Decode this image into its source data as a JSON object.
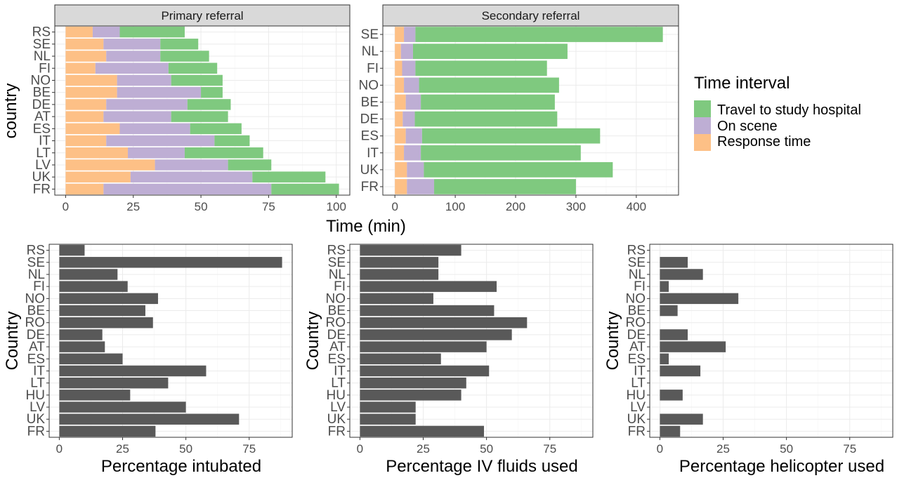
{
  "legend": {
    "title": "Time interval",
    "items": [
      {
        "label": "Travel to study hospital",
        "color": "#7fc97f"
      },
      {
        "label": "On scene",
        "color": "#beaed4"
      },
      {
        "label": "Response time",
        "color": "#fdc086"
      }
    ]
  },
  "top_xlabel": "Time (min)",
  "top_ylabel": "country",
  "chart_data": [
    {
      "type": "bar",
      "stacked": true,
      "orientation": "horizontal",
      "title": "Primary referral",
      "ylabel": "country",
      "xlabel": "Time (min)",
      "categories": [
        "RS",
        "SE",
        "NL",
        "FI",
        "NO",
        "BE",
        "DE",
        "AT",
        "ES",
        "IT",
        "LT",
        "LV",
        "UK",
        "FR"
      ],
      "series": [
        {
          "name": "Response time",
          "color": "#fdc086",
          "values": [
            10,
            14,
            15,
            11,
            19,
            19,
            15,
            14,
            20,
            15,
            23,
            33,
            24,
            14
          ]
        },
        {
          "name": "On scene",
          "color": "#beaed4",
          "values": [
            10,
            21,
            20,
            27,
            20,
            31,
            30,
            25,
            26,
            40,
            21,
            27,
            45,
            62
          ]
        },
        {
          "name": "Travel to study hospital",
          "color": "#7fc97f",
          "values": [
            24,
            14,
            18,
            18,
            19,
            8,
            16,
            21,
            19,
            13,
            29,
            16,
            27,
            25
          ]
        }
      ],
      "xlim": [
        -4,
        105
      ],
      "xticks": [
        0,
        25,
        50,
        75,
        100
      ],
      "grid": true
    },
    {
      "type": "bar",
      "stacked": true,
      "orientation": "horizontal",
      "title": "Secondary referral",
      "xlabel": "Time (min)",
      "categories": [
        "SE",
        "NL",
        "FI",
        "NO",
        "BE",
        "DE",
        "ES",
        "IT",
        "UK",
        "FR"
      ],
      "series": [
        {
          "name": "Response time",
          "color": "#fdc086",
          "values": [
            15,
            10,
            12,
            15,
            18,
            13,
            18,
            15,
            20,
            20
          ]
        },
        {
          "name": "On scene",
          "color": "#beaed4",
          "values": [
            19,
            20,
            22,
            25,
            25,
            20,
            27,
            28,
            28,
            45
          ]
        },
        {
          "name": "Travel to study hospital",
          "color": "#7fc97f",
          "values": [
            410,
            256,
            218,
            232,
            222,
            236,
            295,
            265,
            313,
            235
          ]
        }
      ],
      "xlim": [
        -20,
        470
      ],
      "xticks": [
        0,
        100,
        200,
        300,
        400
      ],
      "grid": true
    },
    {
      "type": "bar",
      "orientation": "horizontal",
      "xlabel": "Percentage intubated",
      "ylabel": "Country",
      "categories": [
        "RS",
        "SE",
        "NL",
        "FI",
        "NO",
        "BE",
        "RO",
        "DE",
        "AT",
        "ES",
        "IT",
        "LT",
        "HU",
        "LV",
        "UK",
        "FR"
      ],
      "values": [
        10,
        88,
        23,
        27,
        39,
        34,
        37,
        17,
        18,
        25,
        58,
        43,
        28,
        50,
        71,
        38
      ],
      "color": "#595959",
      "xlim": [
        -4,
        92
      ],
      "xticks": [
        0,
        25,
        50,
        75
      ],
      "grid": true
    },
    {
      "type": "bar",
      "orientation": "horizontal",
      "xlabel": "Percentage IV fluids used",
      "ylabel": "Country",
      "categories": [
        "RS",
        "SE",
        "NL",
        "FI",
        "NO",
        "BE",
        "RO",
        "DE",
        "AT",
        "ES",
        "IT",
        "LT",
        "HU",
        "LV",
        "UK",
        "FR"
      ],
      "values": [
        40,
        31,
        31,
        54,
        29,
        53,
        66,
        60,
        50,
        32,
        51,
        42,
        40,
        22,
        22,
        49
      ],
      "color": "#595959",
      "xlim": [
        -4,
        92
      ],
      "xticks": [
        0,
        25,
        50,
        75
      ],
      "grid": true
    },
    {
      "type": "bar",
      "orientation": "horizontal",
      "xlabel": "Percentage helicopter used",
      "ylabel": "Country",
      "categories": [
        "RS",
        "SE",
        "NL",
        "FI",
        "NO",
        "BE",
        "RO",
        "DE",
        "AT",
        "ES",
        "IT",
        "LT",
        "HU",
        "LV",
        "UK",
        "FR"
      ],
      "values": [
        0,
        11,
        17,
        3.5,
        31,
        7,
        0,
        11,
        26,
        3.5,
        16,
        0,
        9,
        0,
        17,
        8
      ],
      "color": "#595959",
      "xlim": [
        -4,
        92
      ],
      "xticks": [
        0,
        25,
        50,
        75
      ],
      "grid": true
    }
  ]
}
